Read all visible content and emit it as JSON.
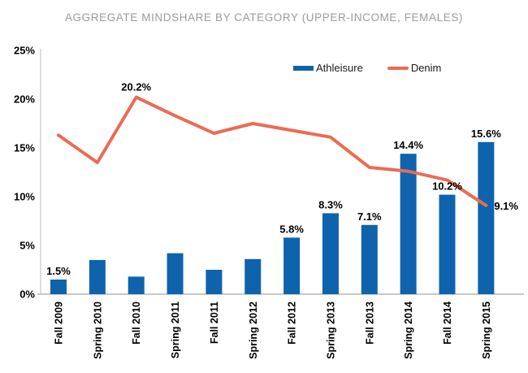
{
  "title": "AGGREGATE MINDSHARE BY CATEGORY (UPPER-INCOME, FEMALES)",
  "legend": {
    "items": [
      {
        "label": "Athleisure",
        "swatch": "bar",
        "color": "#0f63ac"
      },
      {
        "label": "Denim",
        "swatch": "line",
        "color": "#ec6b53"
      }
    ]
  },
  "chart_data": {
    "type": "bar+line combo",
    "title": "AGGREGATE MINDSHARE BY CATEGORY (UPPER-INCOME, FEMALES)",
    "categories": [
      "Fall 2009",
      "Spring 2010",
      "Fall 2010",
      "Spring 2011",
      "Fall 2011",
      "Spring 2012",
      "Fall 2012",
      "Spring 2013",
      "Fall 2013",
      "Spring 2014",
      "Fall 2014",
      "Spring 2015"
    ],
    "series": [
      {
        "name": "Athleisure",
        "type": "bar",
        "color": "#0f63ac",
        "values": [
          1.5,
          3.5,
          1.8,
          4.2,
          2.5,
          3.6,
          5.8,
          8.3,
          7.1,
          14.4,
          10.2,
          15.6
        ],
        "labels": [
          "1.5%",
          "",
          "",
          "",
          "",
          "",
          "5.8%",
          "8.3%",
          "7.1%",
          "14.4%",
          "10.2%",
          "15.6%"
        ]
      },
      {
        "name": "Denim",
        "type": "line",
        "color": "#ec6b53",
        "values": [
          16.3,
          13.5,
          20.2,
          18.3,
          16.5,
          17.5,
          16.8,
          16.1,
          13.0,
          12.6,
          11.7,
          9.1
        ],
        "labels": [
          "",
          "",
          "20.2%",
          "",
          "",
          "",
          "",
          "",
          "",
          "",
          "",
          "9.1%"
        ]
      }
    ],
    "y_ticks": [
      "0%",
      "5%",
      "10%",
      "15%",
      "20%",
      "25%"
    ],
    "ylim": [
      0,
      25
    ],
    "grid": false,
    "legend_position": "top-inside"
  },
  "colors": {
    "x_axis_line": "#c9c9c9",
    "y_axis_line": "#d2d2d2",
    "tick_text": "#000000",
    "title_text": "#9b9b9b"
  }
}
